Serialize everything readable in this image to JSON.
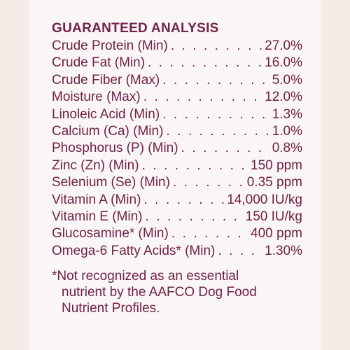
{
  "heading": "GUARANTEED ANALYSIS",
  "rows": [
    {
      "label": "Crude Protein (Min)",
      "value": "27.0%"
    },
    {
      "label": "Crude Fat (Min)",
      "value": "16.0%"
    },
    {
      "label": "Crude Fiber (Max)",
      "value": "5.0%"
    },
    {
      "label": "Moisture (Max)",
      "value": "12.0%"
    },
    {
      "label": "Linoleic Acid (Min)",
      "value": "1.3%"
    },
    {
      "label": "Calcium (Ca) (Min)",
      "value": "1.0%"
    },
    {
      "label": "Phosphorus (P) (Min)",
      "value": "0.8%"
    },
    {
      "label": "Zinc (Zn) (Min)",
      "value": "150 ppm"
    },
    {
      "label": "Selenium (Se) (Min)",
      "value": "0.35 ppm"
    },
    {
      "label": "Vitamin A (Min)",
      "value": "14,000 IU/kg"
    },
    {
      "label": "Vitamin E (Min)",
      "value": "150 IU/kg"
    },
    {
      "label": "Glucosamine* (Min)",
      "value": "400 ppm"
    },
    {
      "label": "Omega-6 Fatty Acids* (Min)",
      "value": "1.30%"
    }
  ],
  "footnote": {
    "line1": "*Not recognized as an essential",
    "line2": "nutrient by the AAFCO Dog Food",
    "line3": "Nutrient Profiles."
  },
  "colors": {
    "text": "#6e1f45",
    "panel": "#fbf6f6",
    "background": "#f6ece7"
  }
}
